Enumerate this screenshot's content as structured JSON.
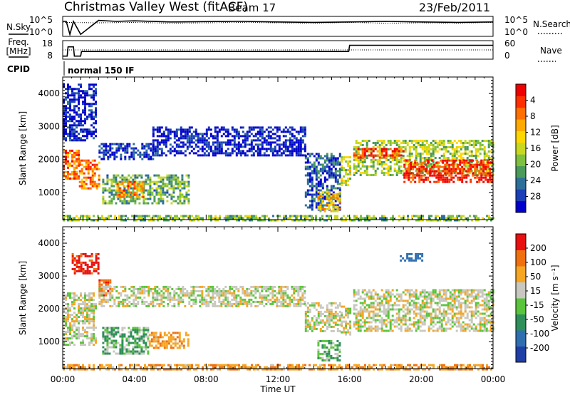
{
  "chart_data": [
    {
      "type": "line",
      "panel": "noise",
      "header_left": "Christmas Valley West (fitACF)",
      "header_mid": "Beam 17",
      "header_right": "23/Feb/2011",
      "left_label": "N.Sky",
      "right_label": "N.Search",
      "ytick_labels": [
        "10^5",
        "10^0"
      ],
      "series": [
        {
          "name": "N.Sky",
          "style": "solid",
          "x": [
            0.0,
            0.2,
            0.4,
            0.6,
            1.0,
            2.0,
            3.0,
            4.0,
            6.0,
            8.0,
            10.0,
            12.0,
            14.0,
            16.0,
            18.0,
            20.0,
            22.0,
            24.0
          ],
          "y": [
            0.75,
            0.75,
            0.1,
            0.75,
            0.1,
            0.8,
            0.75,
            0.78,
            0.72,
            0.74,
            0.75,
            0.72,
            0.7,
            0.72,
            0.75,
            0.72,
            0.7,
            0.72
          ]
        },
        {
          "name": "N.Search",
          "style": "dotted",
          "x": [
            0.0,
            2.0,
            4.0,
            6.0,
            8.0,
            10.0,
            12.0,
            14.0,
            16.0,
            18.0,
            20.0,
            22.0,
            24.0
          ],
          "y": [
            0.7,
            0.68,
            0.7,
            0.66,
            0.68,
            0.7,
            0.68,
            0.66,
            0.7,
            0.66,
            0.68,
            0.66,
            0.7
          ]
        }
      ]
    },
    {
      "type": "line",
      "panel": "frequency",
      "left_label_1": "Freq.",
      "left_label_2": "[MHz]",
      "right_label": "Nave",
      "left_ticks": [
        "18",
        "8"
      ],
      "right_ticks": [
        "60",
        "0"
      ],
      "series": [
        {
          "name": "Freq.",
          "style": "solid",
          "x": [
            0.0,
            0.25,
            0.3,
            0.6,
            0.65,
            1.0,
            1.05,
            15.95,
            16.0,
            24.0
          ],
          "y": [
            8,
            8,
            14,
            14,
            8,
            8,
            11,
            11,
            15,
            15
          ]
        },
        {
          "name": "Nave",
          "style": "dotted",
          "x": [
            0.0,
            24.0
          ],
          "y": [
            30,
            30
          ]
        }
      ]
    },
    {
      "type": "table",
      "panel": "cpid",
      "label": "CPID",
      "text": "normal 150 IF"
    },
    {
      "type": "heatmap",
      "panel": "power",
      "ylabel": "Slant Range [km]",
      "yticks": [
        1000,
        2000,
        3000,
        4000
      ],
      "ylim": [
        180,
        4500
      ],
      "xlim": [
        0,
        24
      ],
      "colorbar_label": "Power [dB]",
      "colorbar_ticks": [
        "4",
        "8",
        "12",
        "16",
        "20",
        "24",
        "28"
      ],
      "colorbar_colors": [
        "#0000cc",
        "#1a3fb8",
        "#2e6f9a",
        "#4a9a5a",
        "#7fc040",
        "#c8d820",
        "#ffd700",
        "#ffaa00",
        "#ff7000",
        "#ff3000",
        "#ee0000"
      ],
      "regions": [
        {
          "t0": 0.0,
          "t1": 0.9,
          "r0": 1400,
          "r1": 2300,
          "level": 0.8
        },
        {
          "t0": 0.9,
          "t1": 2.0,
          "r0": 1100,
          "r1": 2000,
          "level": 0.75
        },
        {
          "t0": 2.0,
          "t1": 5.0,
          "r0": 2000,
          "r1": 2500,
          "level": 0.1
        },
        {
          "t0": 2.2,
          "t1": 7.0,
          "r0": 650,
          "r1": 1550,
          "level": 0.35
        },
        {
          "t0": 3.0,
          "t1": 4.5,
          "r0": 850,
          "r1": 1350,
          "level": 0.75
        },
        {
          "t0": 5.0,
          "t1": 13.5,
          "r0": 2100,
          "r1": 3000,
          "level": 0.05
        },
        {
          "t0": 13.5,
          "t1": 15.5,
          "r0": 500,
          "r1": 2200,
          "level": 0.15
        },
        {
          "t0": 14.2,
          "t1": 15.4,
          "r0": 450,
          "r1": 1050,
          "level": 0.6
        },
        {
          "t0": 15.5,
          "t1": 16.0,
          "r0": 1200,
          "r1": 2100,
          "level": 0.5
        },
        {
          "t0": 16.2,
          "t1": 24.0,
          "r0": 1500,
          "r1": 2600,
          "level": 0.45
        },
        {
          "t0": 16.2,
          "t1": 19.0,
          "r0": 2050,
          "r1": 2350,
          "level": 0.85
        },
        {
          "t0": 19.0,
          "t1": 24.0,
          "r0": 1300,
          "r1": 2000,
          "level": 0.9
        },
        {
          "t0": 0.0,
          "t1": 24.0,
          "r0": 180,
          "r1": 320,
          "level": 0.4
        },
        {
          "t0": 0.0,
          "t1": 1.8,
          "r0": 2600,
          "r1": 4300,
          "level": 0.05
        }
      ]
    },
    {
      "type": "heatmap",
      "panel": "velocity",
      "ylabel": "Slant Range [km]",
      "xlabel": "Time UT",
      "xticks": [
        "00:00",
        "04:00",
        "08:00",
        "12:00",
        "16:00",
        "20:00",
        "00:00"
      ],
      "yticks": [
        1000,
        2000,
        3000,
        4000
      ],
      "ylim": [
        180,
        4500
      ],
      "xlim": [
        0,
        24
      ],
      "colorbar_label": "Velocity [m s⁻¹]",
      "colorbar_ticks": [
        "200",
        "100",
        "50",
        "15",
        "-15",
        "-50",
        "-100",
        "-200"
      ],
      "colorbar_colors": [
        "#1f3fa6",
        "#2f6fb0",
        "#2e8f5a",
        "#5ac43c",
        "#c8c8c0",
        "#f5a623",
        "#f07010",
        "#e81010"
      ],
      "regions": [
        {
          "t0": 0.0,
          "t1": 1.8,
          "r0": 900,
          "r1": 2500,
          "v": 0
        },
        {
          "t0": 0.5,
          "t1": 2.0,
          "r0": 3100,
          "r1": 3700,
          "v": -120
        },
        {
          "t0": 2.0,
          "t1": 2.6,
          "r0": 2400,
          "r1": 2900,
          "v": -80
        },
        {
          "t0": 2.0,
          "t1": 13.5,
          "r0": 2100,
          "r1": 2700,
          "v": 0
        },
        {
          "t0": 2.2,
          "t1": 4.8,
          "r0": 650,
          "r1": 1450,
          "v": 30
        },
        {
          "t0": 4.8,
          "t1": 7.0,
          "r0": 800,
          "r1": 1300,
          "v": -40
        },
        {
          "t0": 13.5,
          "t1": 15.5,
          "r0": 1300,
          "r1": 2200,
          "v": 0
        },
        {
          "t0": 14.2,
          "t1": 15.4,
          "r0": 450,
          "r1": 1050,
          "v": 30
        },
        {
          "t0": 15.5,
          "t1": 16.0,
          "r0": 1200,
          "r1": 2100,
          "v": 0
        },
        {
          "t0": 16.2,
          "t1": 24.0,
          "r0": 1300,
          "r1": 2600,
          "v": 0
        },
        {
          "t0": 18.8,
          "t1": 20.0,
          "r0": 3500,
          "r1": 3700,
          "v": 120
        },
        {
          "t0": 0.0,
          "t1": 24.0,
          "r0": 180,
          "r1": 320,
          "v": -40
        }
      ]
    }
  ]
}
